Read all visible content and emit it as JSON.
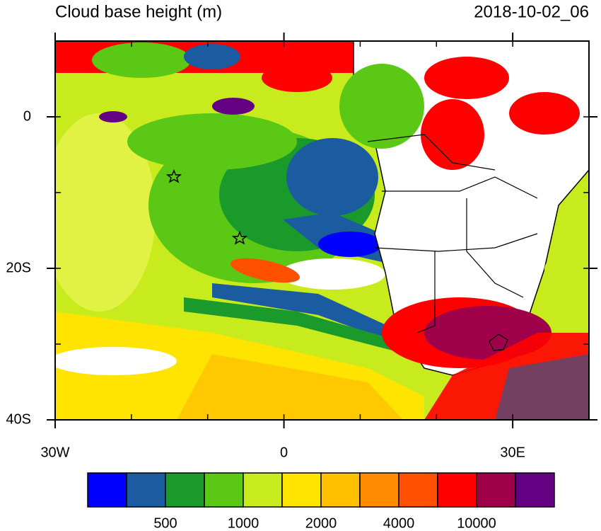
{
  "header": {
    "title": "Cloud base height (m)",
    "timestamp": "2018-10-02_06"
  },
  "map": {
    "lonlim": [
      -30,
      40
    ],
    "latlim": [
      -40,
      10
    ],
    "lonticks": [
      {
        "value": -30,
        "label": "30W"
      },
      0,
      {
        "value": 30,
        "label": "30E"
      }
    ],
    "latticks": [
      0,
      {
        "value": -20,
        "label": "20S"
      },
      {
        "value": -40,
        "label": "40S"
      }
    ]
  },
  "colorbar": {
    "colors": [
      "#0000ff",
      "#1b5ca0",
      "#1a9a2a",
      "#5ac814",
      "#c8eb1e",
      "#ffe400",
      "#ffc000",
      "#ff8c00",
      "#ff5000",
      "#ff0000",
      "#a0004a",
      "#640082"
    ],
    "labels": [
      500,
      1000,
      2000,
      4000,
      10000
    ]
  }
}
